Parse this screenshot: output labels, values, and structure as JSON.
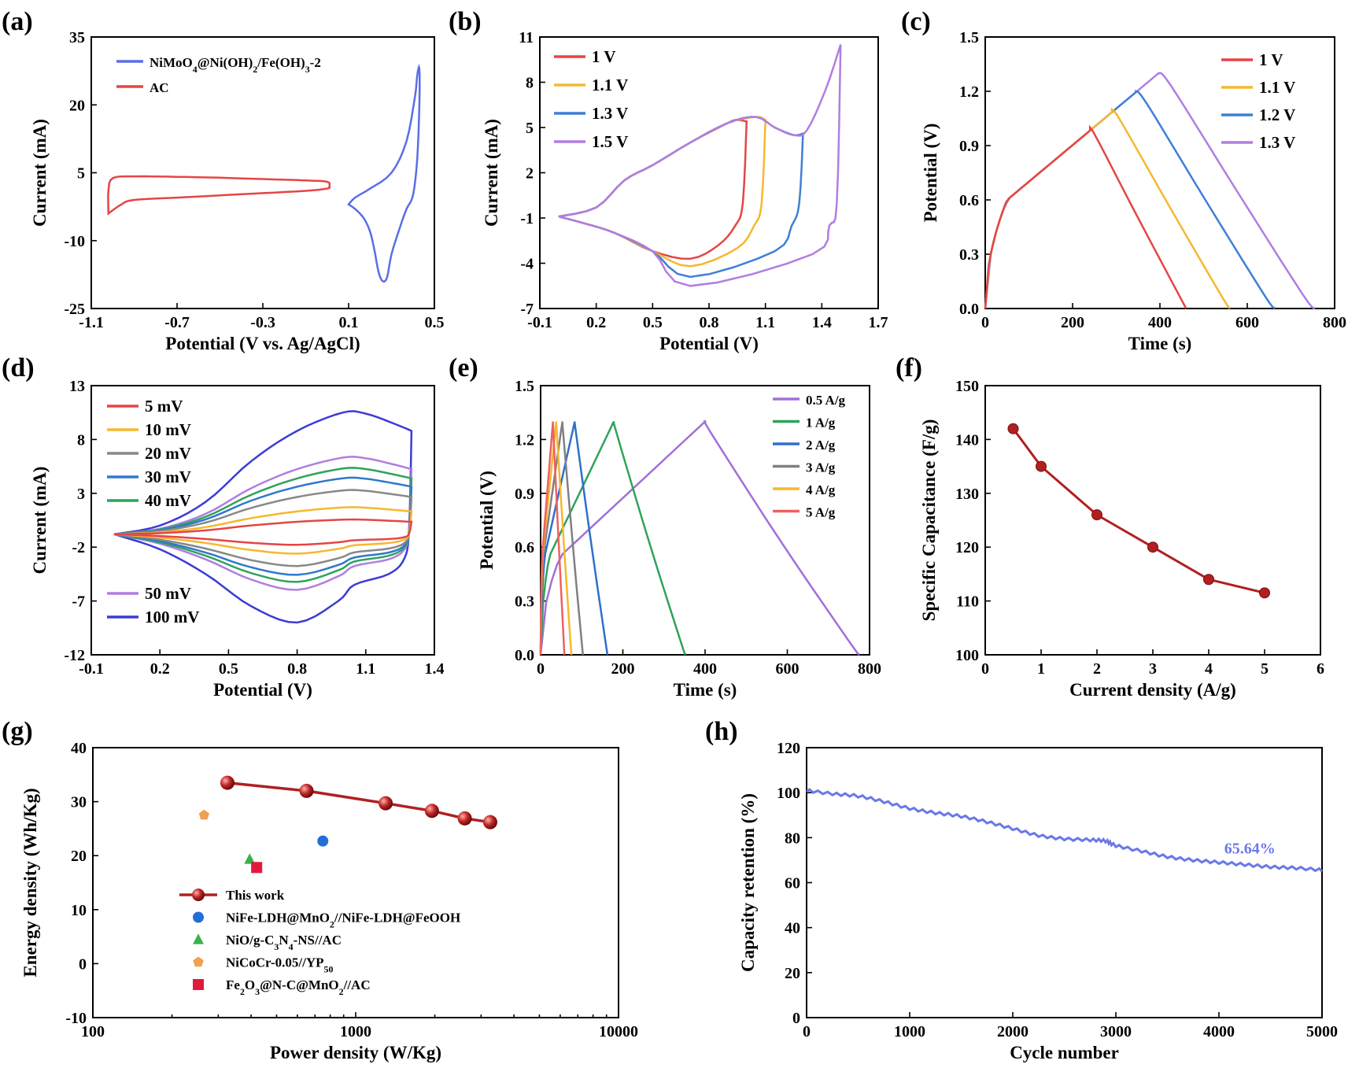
{
  "chart_data": [
    {
      "panel": "(a)",
      "type": "line",
      "xlabel": "Potential (V vs. Ag/AgCl)",
      "ylabel": "Current (mA)",
      "xlim": [
        -1.1,
        0.5
      ],
      "ylim": [
        -25,
        35
      ],
      "xticks": [
        -1.1,
        -0.7,
        -0.3,
        0.1,
        0.5
      ],
      "yticks": [
        -25,
        -10,
        5,
        20,
        35
      ],
      "legend_position": "top-left",
      "series": [
        {
          "name": "NiMoO4@Ni(OH)2/Fe(OH)3-2",
          "color": "#5a6ee6",
          "x": [
            0.1,
            0.13,
            0.2,
            0.3,
            0.37,
            0.41,
            0.42,
            0.43,
            0.43,
            0.42,
            0.4,
            0.37,
            0.34,
            0.3,
            0.28,
            0.26,
            0.24,
            0.22,
            0.2,
            0.17,
            0.13,
            0.1
          ],
          "y": [
            -2,
            -0.5,
            1.5,
            5,
            12,
            22,
            26.5,
            28,
            20,
            8,
            0,
            -3,
            -7,
            -13,
            -18,
            -19,
            -17,
            -12,
            -8,
            -5,
            -3,
            -2
          ]
        },
        {
          "name": "AC",
          "color": "#e64545",
          "x": [
            -1.02,
            -0.96,
            -0.9,
            -0.7,
            -0.5,
            -0.3,
            -0.1,
            0.0,
            0.01,
            0.0,
            -0.1,
            -0.3,
            -0.5,
            -0.7,
            -0.9,
            -1.0,
            -1.02,
            -1.02
          ],
          "y": [
            -4,
            -2,
            -1,
            -0.5,
            0,
            0.5,
            1,
            1.5,
            2,
            3,
            3.3,
            3.6,
            3.9,
            4.1,
            4.2,
            3.8,
            1,
            -4
          ]
        }
      ]
    },
    {
      "panel": "(b)",
      "type": "line",
      "xlabel": "Potential (V)",
      "ylabel": "Current (mA)",
      "xlim": [
        -0.1,
        1.7
      ],
      "ylim": [
        -7,
        11
      ],
      "xticks": [
        -0.1,
        0.2,
        0.5,
        0.8,
        1.1,
        1.4,
        1.7
      ],
      "yticks": [
        -7,
        -4,
        -1,
        2,
        5,
        8,
        11
      ],
      "legend_position": "top-left",
      "series": [
        {
          "name": "1 V",
          "color": "#e64545",
          "vmax": 1.0
        },
        {
          "name": "1.1 V",
          "color": "#f5b82e",
          "vmax": 1.1
        },
        {
          "name": "1.3 V",
          "color": "#3f7fd8",
          "vmax": 1.3
        },
        {
          "name": "1.5 V",
          "color": "#b07ee0",
          "vmax": 1.5
        }
      ]
    },
    {
      "panel": "(c)",
      "type": "line",
      "xlabel": "Time (s)",
      "ylabel": "Potential (V)",
      "xlim": [
        0,
        800
      ],
      "ylim": [
        0,
        1.5
      ],
      "xticks": [
        0,
        200,
        400,
        600,
        800
      ],
      "yticks": [
        0.0,
        0.3,
        0.6,
        0.9,
        1.2,
        1.5
      ],
      "legend_position": "top-right",
      "series": [
        {
          "name": "1 V",
          "color": "#e64545",
          "vmax": 1.0,
          "t_peak": 240,
          "t_end": 460
        },
        {
          "name": "1.1 V",
          "color": "#f5b82e",
          "vmax": 1.1,
          "t_peak": 290,
          "t_end": 560
        },
        {
          "name": "1.2 V",
          "color": "#3f7fd8",
          "vmax": 1.2,
          "t_peak": 345,
          "t_end": 663
        },
        {
          "name": "1.3 V",
          "color": "#b07ee0",
          "vmax": 1.3,
          "t_peak": 397,
          "t_end": 755
        }
      ]
    },
    {
      "panel": "(d)",
      "type": "line",
      "xlabel": "Potential (V)",
      "ylabel": "Current (mA)",
      "xlim": [
        -0.1,
        1.4
      ],
      "ylim": [
        -12,
        13
      ],
      "xticks": [
        -0.1,
        0.2,
        0.5,
        0.8,
        1.1,
        1.4
      ],
      "yticks": [
        -12,
        -7,
        -2,
        3,
        8,
        13
      ],
      "legend_position": "left",
      "series": [
        {
          "name": "5 mV",
          "color": "#e64545",
          "scale": 0.12
        },
        {
          "name": "10 mV",
          "color": "#f5b82e",
          "scale": 0.22
        },
        {
          "name": "20 mV",
          "color": "#888888",
          "scale": 0.36
        },
        {
          "name": "30 mV",
          "color": "#2f78cc",
          "scale": 0.46
        },
        {
          "name": "40 mV",
          "color": "#2ea35a",
          "scale": 0.54
        },
        {
          "name": "50 mV",
          "color": "#b07ee0",
          "scale": 0.63
        },
        {
          "name": "100 mV",
          "color": "#3b3bd6",
          "scale": 1.0
        }
      ]
    },
    {
      "panel": "(e)",
      "type": "line",
      "xlabel": "Time (s)",
      "ylabel": "Potential (V)",
      "xlim": [
        0,
        800
      ],
      "ylim": [
        0,
        1.5
      ],
      "xticks": [
        0,
        200,
        400,
        600,
        800
      ],
      "yticks": [
        0.0,
        0.3,
        0.6,
        0.9,
        1.2,
        1.5
      ],
      "legend_position": "top-right",
      "series": [
        {
          "name": "0.5 A/g",
          "color": "#a070d8",
          "t_peak": 400,
          "t_end": 775
        },
        {
          "name": "1 A/g",
          "color": "#2ea35a",
          "t_peak": 178,
          "t_end": 352
        },
        {
          "name": "2 A/g",
          "color": "#2f6fcc",
          "t_peak": 83,
          "t_end": 163
        },
        {
          "name": "3 A/g",
          "color": "#808080",
          "t_peak": 53,
          "t_end": 103
        },
        {
          "name": "4 A/g",
          "color": "#f5b82e",
          "t_peak": 38,
          "t_end": 75
        },
        {
          "name": "5 A/g",
          "color": "#f06060",
          "t_peak": 30,
          "t_end": 58
        }
      ]
    },
    {
      "panel": "(f)",
      "type": "line",
      "xlabel": "Current density (A/g)",
      "ylabel": "Specific Capacitance (F/g)",
      "xlim": [
        0,
        6
      ],
      "ylim": [
        100,
        150
      ],
      "xticks": [
        0,
        1,
        2,
        3,
        4,
        5,
        6
      ],
      "yticks": [
        100,
        110,
        120,
        130,
        140,
        150
      ],
      "series": [
        {
          "name": "",
          "color": "#b02020",
          "x": [
            0.5,
            1,
            2,
            3,
            4,
            5
          ],
          "y": [
            142,
            135,
            126,
            120,
            114,
            111.5
          ]
        }
      ]
    },
    {
      "panel": "(g)",
      "type": "scatter",
      "xlabel": "Power density (W/Kg)",
      "ylabel": "Energy density (Wh/Kg)",
      "xscale": "log",
      "xlim": [
        100,
        10000
      ],
      "ylim": [
        -10,
        40
      ],
      "xticks": [
        100,
        1000,
        10000
      ],
      "yticks": [
        -10,
        0,
        10,
        20,
        30,
        40
      ],
      "legend_position": "bottom-left",
      "series": [
        {
          "name": "This work",
          "color": "#b02020",
          "marker": "sphere-line",
          "x": [
            325,
            650,
            1300,
            1950,
            2600,
            3250
          ],
          "y": [
            33.5,
            32,
            29.7,
            28.3,
            26.9,
            26.2
          ]
        },
        {
          "name": "NiFe-LDH@MnO2//NiFe-LDH@FeOOH",
          "color": "#1f6fd6",
          "marker": "circle",
          "x": [
            750
          ],
          "y": [
            22.7
          ]
        },
        {
          "name": "NiO/g-C3N4-NS//AC",
          "color": "#3cb04b",
          "marker": "triangle",
          "x": [
            395
          ],
          "y": [
            19.3
          ]
        },
        {
          "name": "NiCoCr-0.05//YP50",
          "color": "#f0a050",
          "marker": "pentagon",
          "x": [
            265
          ],
          "y": [
            27.5
          ]
        },
        {
          "name": "Fe2O3@N-C@MnO2//AC",
          "color": "#e01a3a",
          "marker": "square",
          "x": [
            420
          ],
          "y": [
            17.8
          ]
        }
      ]
    },
    {
      "panel": "(h)",
      "type": "line",
      "xlabel": "Cycle number",
      "ylabel": "Capacity retention (%)",
      "xlim": [
        0,
        5000
      ],
      "ylim": [
        0,
        120
      ],
      "xticks": [
        0,
        1000,
        2000,
        3000,
        4000,
        5000
      ],
      "yticks": [
        0,
        20,
        40,
        60,
        80,
        100,
        120
      ],
      "annotation": "65.64%",
      "series": [
        {
          "name": "",
          "color": "#6a78e8",
          "x": [
            0,
            250,
            500,
            750,
            1000,
            1250,
            1500,
            1750,
            2000,
            2250,
            2500,
            2750,
            2900,
            3000,
            3250,
            3500,
            3750,
            4000,
            4250,
            4500,
            4750,
            5000
          ],
          "y": [
            101,
            99.5,
            98.5,
            96,
            93,
            91,
            89.5,
            87,
            84,
            81,
            79.5,
            79,
            78.5,
            76.5,
            74,
            71.5,
            70,
            69,
            68,
            67,
            66.5,
            65.6
          ]
        }
      ]
    }
  ],
  "panels": {
    "a": {
      "letter": "(a)",
      "ylabel": "Current (mA)",
      "xlabel": "Potential (V vs. Ag/AgCl)",
      "legend1": "NiMoO4@Ni(OH)2/Fe(OH)3-2",
      "legend2": "AC"
    },
    "b": {
      "letter": "(b)",
      "ylabel": "Current (mA)",
      "xlabel": "Potential (V)"
    },
    "c": {
      "letter": "(c)",
      "ylabel": "Potential (V)",
      "xlabel": "Time (s)"
    },
    "d": {
      "letter": "(d)",
      "ylabel": "Current (mA)",
      "xlabel": "Potential (V)"
    },
    "e": {
      "letter": "(e)",
      "ylabel": "Potential (V)",
      "xlabel": "Time (s)"
    },
    "f": {
      "letter": "(f)",
      "ylabel": "Specific Capacitance (F/g)",
      "xlabel": "Current density (A/g)"
    },
    "g": {
      "letter": "(g)",
      "ylabel": "Energy density (Wh/Kg)",
      "xlabel": "Power density (W/Kg)"
    },
    "h": {
      "letter": "(h)",
      "ylabel": "Capacity retention (%)",
      "xlabel": "Cycle number",
      "annotation": "65.64%"
    }
  }
}
